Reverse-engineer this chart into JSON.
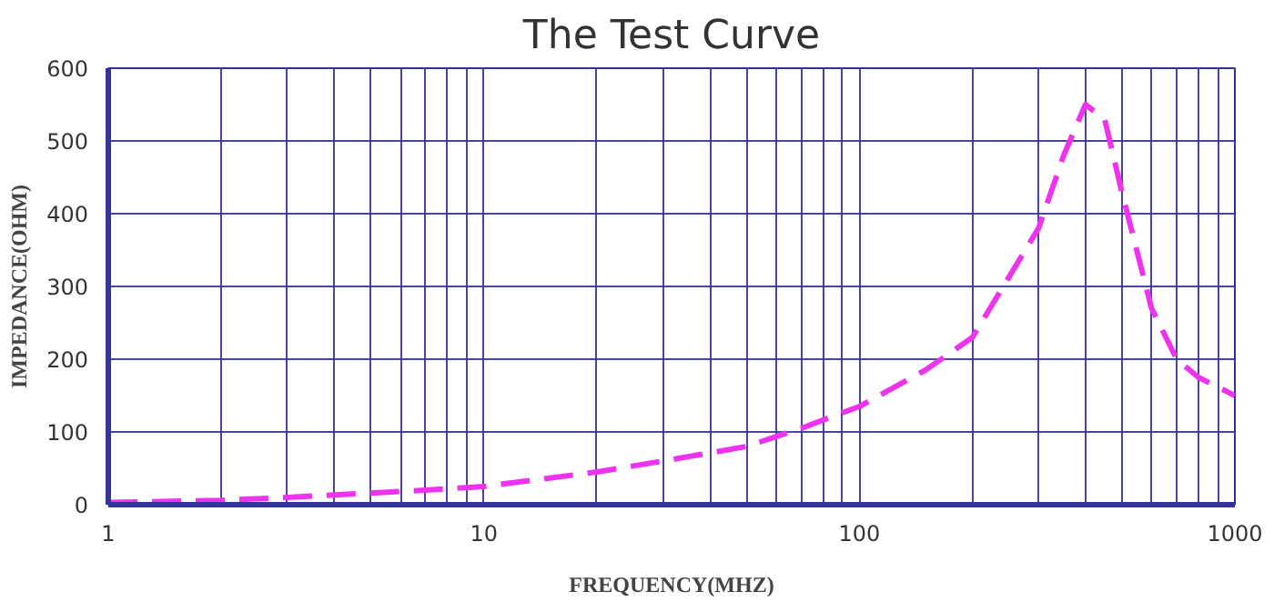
{
  "chart_data": {
    "type": "line",
    "title": "The Test Curve",
    "xlabel": "FREQUENCY(MHZ)",
    "ylabel": "IMPEDANCE(OHM)",
    "log": "x",
    "grid": true,
    "line_style": "dashed",
    "marker": "none",
    "xlim": [
      1,
      1000
    ],
    "ylim": [
      0,
      600
    ],
    "xticks": [
      1,
      {
        "value": 2,
        "label": null
      },
      {
        "value": 3,
        "label": null
      },
      {
        "value": 4,
        "label": null
      },
      {
        "value": 5,
        "label": null
      },
      {
        "value": 6,
        "label": null
      },
      {
        "value": 7,
        "label": null
      },
      {
        "value": 8,
        "label": null
      },
      {
        "value": 9,
        "label": null
      },
      10,
      {
        "value": 20,
        "label": null
      },
      {
        "value": 30,
        "label": null
      },
      {
        "value": 40,
        "label": null
      },
      {
        "value": 50,
        "label": null
      },
      {
        "value": 60,
        "label": null
      },
      {
        "value": 70,
        "label": null
      },
      {
        "value": 80,
        "label": null
      },
      {
        "value": 90,
        "label": null
      },
      100,
      {
        "value": 200,
        "label": null
      },
      {
        "value": 300,
        "label": null
      },
      {
        "value": 400,
        "label": null
      },
      {
        "value": 500,
        "label": null
      },
      {
        "value": 600,
        "label": null
      },
      {
        "value": 700,
        "label": null
      },
      {
        "value": 800,
        "label": null
      },
      {
        "value": 900,
        "label": null
      },
      1000
    ],
    "yticks": [
      0,
      100,
      200,
      300,
      400,
      500,
      600
    ],
    "x": [
      1,
      2,
      3,
      5,
      7,
      10,
      20,
      30,
      50,
      70,
      100,
      150,
      200,
      300,
      350,
      400,
      450,
      500,
      600,
      700,
      800,
      1000
    ],
    "series": [
      {
        "color": "#ee33ee",
        "values": [
          3,
          6,
          10,
          16,
          20,
          25,
          45,
          60,
          80,
          105,
          135,
          185,
          230,
          380,
          480,
          550,
          530,
          430,
          270,
          200,
          175,
          150
        ]
      }
    ]
  }
}
